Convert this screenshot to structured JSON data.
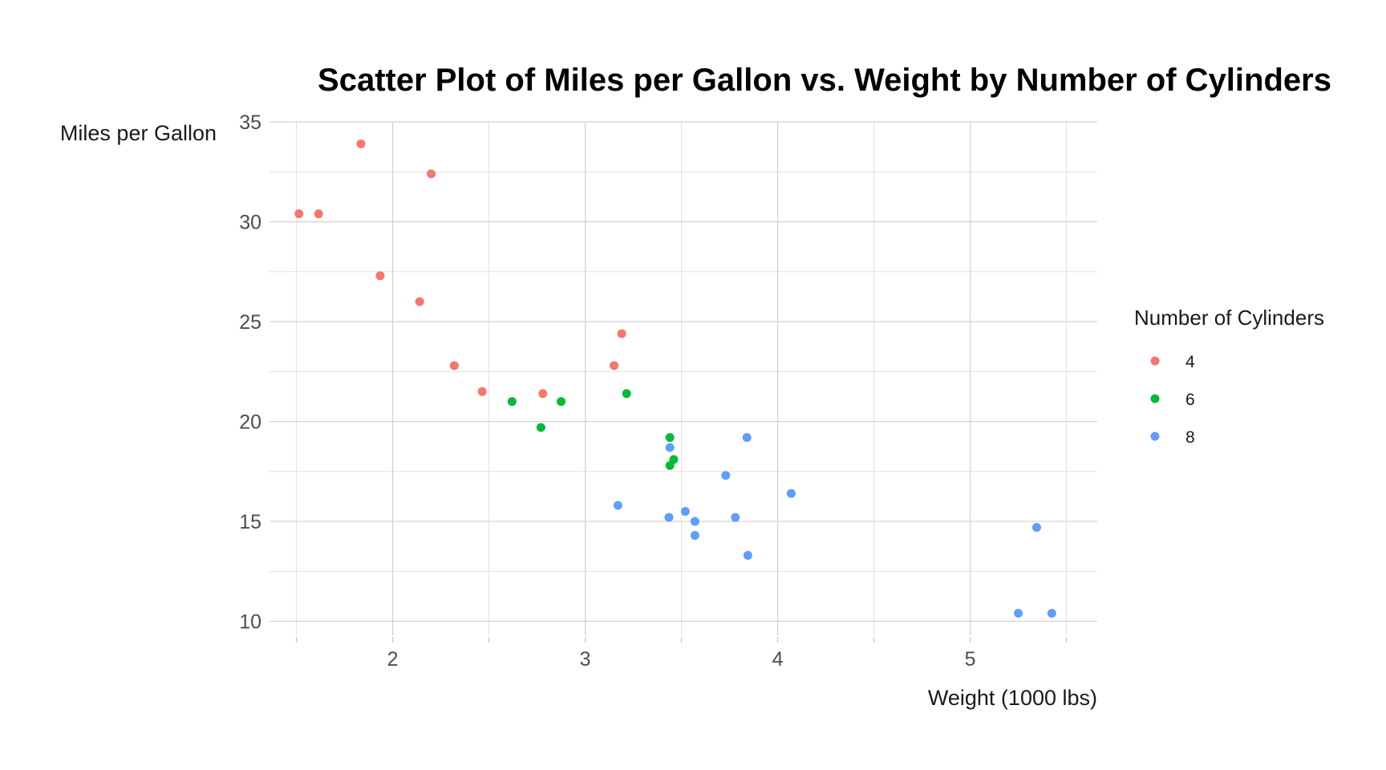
{
  "chart_data": {
    "type": "scatter",
    "title": "Scatter Plot of Miles per Gallon vs. Weight by Number of Cylinders",
    "xlabel": "Weight (1000 lbs)",
    "ylabel": "Miles per Gallon",
    "xlim": [
      1.36,
      5.66
    ],
    "ylim": [
      9.3,
      35
    ],
    "x_ticks": [
      2,
      3,
      4,
      5
    ],
    "y_ticks": [
      10,
      15,
      20,
      25,
      30,
      35
    ],
    "grid": true,
    "legend": {
      "title": "Number of Cylinders",
      "position": "right"
    },
    "series": [
      {
        "name": "4",
        "color": "#F8766D",
        "points": [
          [
            1.513,
            30.4
          ],
          [
            1.615,
            30.4
          ],
          [
            1.835,
            33.9
          ],
          [
            1.935,
            27.3
          ],
          [
            2.2,
            32.4
          ],
          [
            2.14,
            26.0
          ],
          [
            2.32,
            22.8
          ],
          [
            2.465,
            21.5
          ],
          [
            2.78,
            21.4
          ],
          [
            3.15,
            22.8
          ],
          [
            3.19,
            24.4
          ]
        ]
      },
      {
        "name": "6",
        "color": "#00BA38",
        "points": [
          [
            2.62,
            21.0
          ],
          [
            2.875,
            21.0
          ],
          [
            2.77,
            19.7
          ],
          [
            3.215,
            21.4
          ],
          [
            3.44,
            19.2
          ],
          [
            3.46,
            18.1
          ],
          [
            3.44,
            17.8
          ]
        ]
      },
      {
        "name": "8",
        "color": "#619CFF",
        "points": [
          [
            3.44,
            18.7
          ],
          [
            3.84,
            19.2
          ],
          [
            3.73,
            17.3
          ],
          [
            4.07,
            16.4
          ],
          [
            3.17,
            15.8
          ],
          [
            3.435,
            15.2
          ],
          [
            3.52,
            15.5
          ],
          [
            3.57,
            15.0
          ],
          [
            3.57,
            14.3
          ],
          [
            3.78,
            15.2
          ],
          [
            3.845,
            13.3
          ],
          [
            5.345,
            14.7
          ],
          [
            5.25,
            10.4
          ],
          [
            5.424,
            10.4
          ]
        ]
      }
    ]
  }
}
